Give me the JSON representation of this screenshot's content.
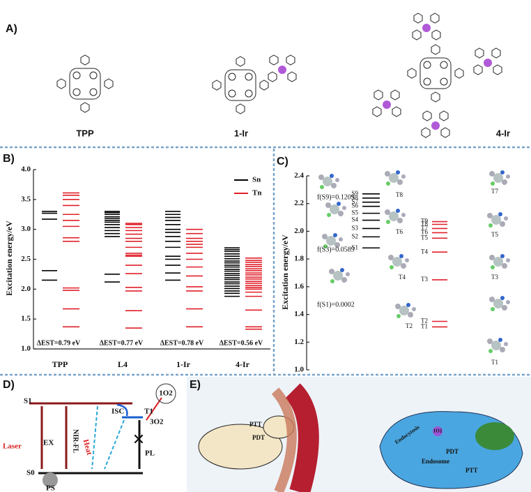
{
  "panel_a": {
    "label": "A)",
    "compounds": [
      "TPP",
      "1-Ir",
      "4-Ir"
    ]
  },
  "chart_data": [
    {
      "type": "energy-levels",
      "label": "B)",
      "y_label": "Excitation energy/eV",
      "ylim": [
        1.0,
        4.0
      ],
      "yticks": [
        {
          "value": 1.0,
          "label": "1.0"
        },
        1.5,
        {
          "value": 2.0,
          "label": "2.0"
        },
        2.5,
        {
          "value": 3.0,
          "label": "3.0"
        },
        3.5,
        {
          "value": 4.0,
          "label": "4.0"
        }
      ],
      "categories": [
        "TPP",
        "L4",
        "1-Ir",
        "4-Ir"
      ],
      "series": [
        {
          "name": "Sn",
          "color": "#000000",
          "values": [
            [
              2.15,
              2.31,
              3.17,
              3.27,
              3.3
            ],
            [
              2.12,
              2.25,
              2.88,
              2.93,
              2.98,
              3.03,
              3.08,
              3.12,
              3.15,
              3.18,
              3.21,
              3.25,
              3.28,
              3.3
            ],
            [
              2.15,
              2.27,
              2.4,
              2.5,
              2.55,
              2.7,
              2.8,
              2.88,
              2.95,
              3.0,
              3.08,
              3.15,
              3.2,
              3.25,
              3.3
            ],
            [
              1.88,
              1.93,
              1.97,
              2.01,
              2.05,
              2.09,
              2.12,
              2.16,
              2.19,
              2.23,
              2.26,
              2.3,
              2.33,
              2.37,
              2.4,
              2.44,
              2.47,
              2.51,
              2.55,
              2.59,
              2.63,
              2.66,
              2.69
            ]
          ]
        },
        {
          "name": "Tn",
          "color": "#e0202a",
          "values": [
            [
              1.37,
              1.67,
              1.98,
              2.02,
              2.8,
              2.86,
              3.05,
              3.15,
              3.25,
              3.4,
              3.5,
              3.57,
              3.61
            ],
            [
              1.35,
              1.64,
              1.97,
              2.03,
              2.26,
              2.4,
              2.55,
              2.57,
              2.6,
              2.7,
              2.8,
              2.85,
              2.92,
              2.98,
              3.03,
              3.08,
              3.1
            ],
            [
              1.37,
              1.67,
              1.97,
              2.04,
              2.22,
              2.37,
              2.5,
              2.6,
              2.7,
              2.75,
              2.8,
              2.85,
              2.93,
              3.0
            ],
            [
              1.33,
              1.37,
              1.65,
              1.88,
              1.95,
              2.0,
              2.03,
              2.06,
              2.1,
              2.13,
              2.17,
              2.2,
              2.24,
              2.27,
              2.31,
              2.34,
              2.38,
              2.41,
              2.45,
              2.48,
              2.52
            ]
          ]
        }
      ],
      "annotations": [
        "ΔEST=0.79 eV",
        "ΔEST=0.77 eV",
        "ΔEST=0.78 eV",
        "ΔEST=0.56 eV"
      ],
      "legend": "upper right"
    },
    {
      "type": "energy-levels",
      "label": "C)",
      "y_label": "Excitation energy/eV",
      "ylim": [
        1.0,
        2.4
      ],
      "yticks": [
        {
          "value": 1.0,
          "label": "1.0"
        },
        1.2,
        1.4,
        1.6,
        1.8,
        {
          "value": 2.0,
          "label": "2.0"
        },
        2.2,
        2.4
      ],
      "levels": [
        {
          "color": "#000000",
          "labels": [
            "S1",
            "S2",
            "S3",
            "S4",
            "S5",
            "S6",
            "S7",
            "S8",
            "S9"
          ],
          "values": [
            1.88,
            1.96,
            2.02,
            2.08,
            2.13,
            2.18,
            2.21,
            2.24,
            2.27
          ]
        },
        {
          "color": "#e0202a",
          "labels": [
            "T1",
            "T2",
            "T3",
            "T4",
            "T5",
            "T6",
            "T7",
            "T8",
            "T9"
          ],
          "values": [
            1.31,
            1.35,
            1.65,
            1.85,
            1.95,
            1.99,
            2.02,
            2.05,
            2.07
          ]
        }
      ],
      "annotations": [
        "f(S9)=0.1209",
        "f(S3)=0.0589",
        "f(S1)=0.0002"
      ],
      "orbital_labels": [
        "T8",
        "T6",
        "T4",
        "T2",
        "T7",
        "T5",
        "T3",
        "T1"
      ]
    }
  ],
  "panel_d": {
    "label": "D)",
    "s1": "S1",
    "t1": "T1",
    "s0": "S0",
    "ex": "EX",
    "nir_fl": "NIR-FL",
    "isc": "ISC",
    "heat": "Heat",
    "pl": "PL",
    "laser": "Laser",
    "ps": "PS",
    "singlet_oxygen": "1O2",
    "triplet_oxygen": "3O2"
  },
  "panel_e": {
    "label": "E)",
    "ptt": "PTT",
    "pdt": "PDT",
    "endocytosis": "Endocytosis",
    "endosome": "Endosome",
    "singlet_oxygen": "1O2",
    "pdt_cell": "PDT",
    "ptt_cell": "PTT"
  }
}
